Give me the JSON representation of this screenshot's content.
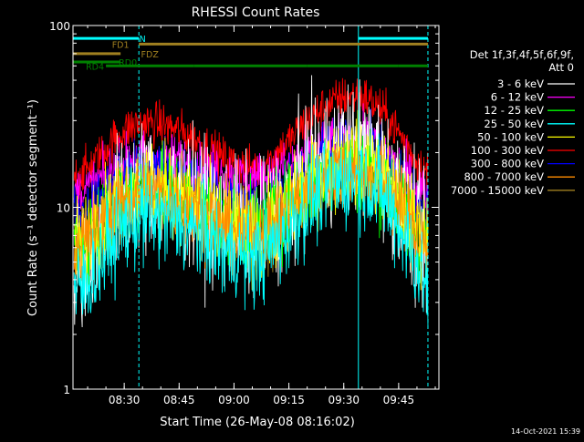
{
  "chart_data": {
    "type": "line",
    "title": "RHESSI Count Rates",
    "xlabel": "Start Time (26-May-08 08:16:02)",
    "ylabel": "Count Rate (s⁻¹ detector segment⁻¹)",
    "yscale": "log",
    "ylim": [
      1,
      100
    ],
    "xlim_minutes": [
      0,
      100
    ],
    "x_ticks": [
      {
        "label": "08:30",
        "min": 14
      },
      {
        "label": "08:45",
        "min": 29
      },
      {
        "label": "09:00",
        "min": 44
      },
      {
        "label": "09:15",
        "min": 59
      },
      {
        "label": "09:30",
        "min": 74
      },
      {
        "label": "09:45",
        "min": 89
      }
    ],
    "y_ticks": [
      {
        "label": "1",
        "value": 1
      },
      {
        "label": "10",
        "value": 10
      },
      {
        "label": "100",
        "value": 100
      }
    ],
    "detector_info": [
      "Det 1f,3f,4f,5f,6f,9f,",
      "Att 0"
    ],
    "series": [
      {
        "name": "3 - 6 keV",
        "color": "#ffffff",
        "peak1": 13,
        "peak2": 21,
        "base": 4.8,
        "valley": 7.5,
        "noise": 0.18
      },
      {
        "name": "6 - 12 keV",
        "color": "#ff00ff",
        "peak1": 19,
        "peak2": 24,
        "base": 12,
        "valley": 14.5,
        "noise": 0.07
      },
      {
        "name": "12 - 25 keV",
        "color": "#00ff00",
        "peak1": 12.5,
        "peak2": 17,
        "base": 6.5,
        "valley": 7.8,
        "noise": 0.12
      },
      {
        "name": "25 - 50 keV",
        "color": "#00ffff",
        "peak1": 8.8,
        "peak2": 14.5,
        "base": 3.4,
        "valley": 5.3,
        "noise": 0.13
      },
      {
        "name": "50 - 100 keV",
        "color": "#ffff00",
        "peak1": 13,
        "peak2": 18,
        "base": 6.4,
        "valley": 7.2,
        "noise": 0.12
      },
      {
        "name": "100 - 300 keV",
        "color": "#ff0000",
        "peak1": 29,
        "peak2": 41,
        "base": 15,
        "valley": 16.5,
        "noise": 0.06
      },
      {
        "name": "300 - 800 keV",
        "color": "#0000ff",
        "peak1": 16.5,
        "peak2": 23,
        "base": 9,
        "valley": 10.3,
        "noise": 0.08
      },
      {
        "name": "800 - 7000 keV",
        "color": "#ff8c00",
        "peak1": 12,
        "peak2": 16.5,
        "base": 6.1,
        "valley": 7.0,
        "noise": 0.11
      },
      {
        "name": "7000 - 15000 keV",
        "color": "#a08020",
        "peak1": 11.5,
        "peak2": 16,
        "base": 6,
        "valley": 6.9,
        "noise": 0.1
      }
    ],
    "peaks_min": [
      20,
      78
    ],
    "night_markers_min": [
      18,
      97
    ],
    "saa_markers_min": [
      78
    ],
    "flag_bars": [
      {
        "label": "N",
        "color": "#00ffff",
        "value": 85,
        "segments": [
          [
            0,
            18
          ],
          [
            78,
            97
          ]
        ],
        "label_at": 19
      },
      {
        "label": "FD1",
        "color": "#a08020",
        "value": 79,
        "segments": [
          [
            18,
            97
          ]
        ],
        "label_at": 13
      },
      {
        "label": "FDZ",
        "color": "#a08020",
        "value": 70,
        "segments": [
          [
            0,
            13
          ]
        ],
        "label_at": 21
      },
      {
        "label": "RD0",
        "color": "#008000",
        "value": 63,
        "segments": [
          [
            0,
            13
          ]
        ],
        "label_at": 15
      },
      {
        "label": "RD4",
        "color": "#008000",
        "value": 60,
        "segments": [
          [
            9,
            33
          ],
          [
            33,
            64
          ],
          [
            64,
            89
          ],
          [
            89,
            97
          ]
        ],
        "label_at": 6
      }
    ]
  },
  "footer_date": "14-Oct-2021 15:39"
}
